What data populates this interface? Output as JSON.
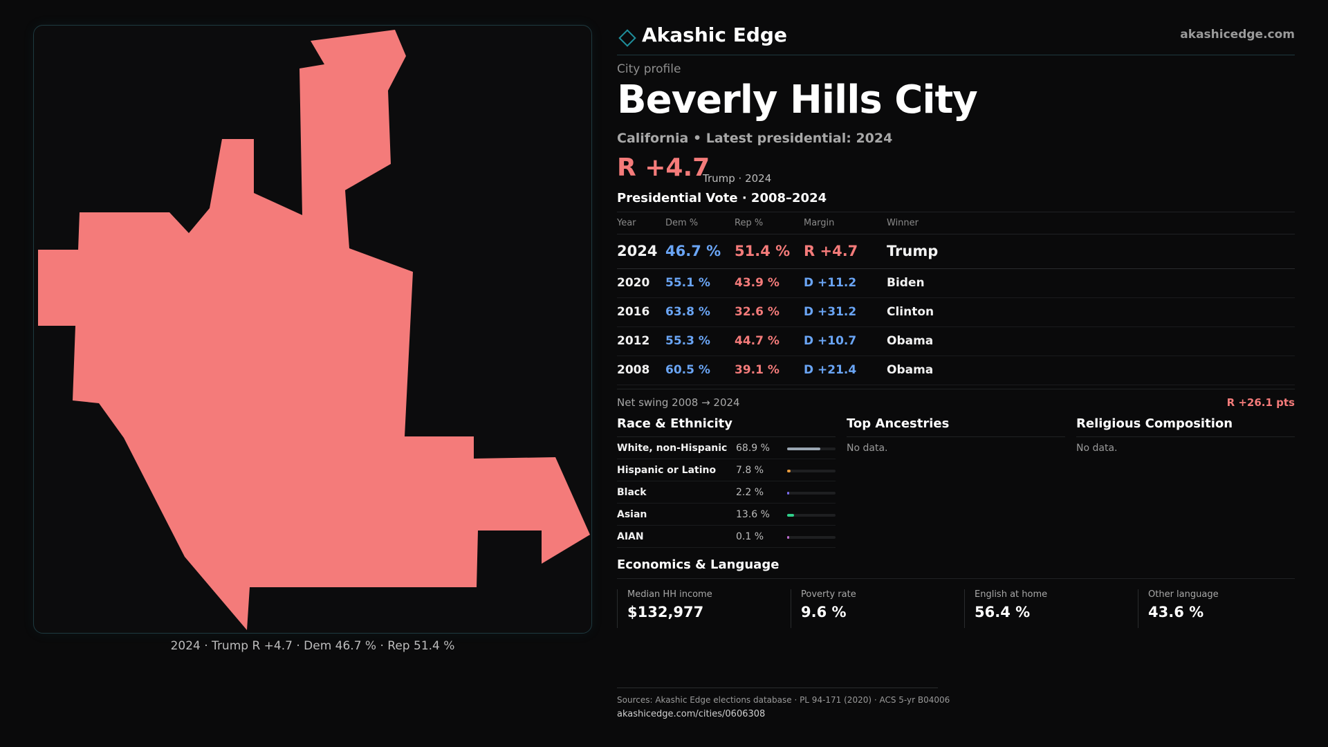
{
  "colors": {
    "republican": "#f47b7a",
    "democrat": "#6aa5f5",
    "accent": "#1f8f9c",
    "background": "#0a0a0b",
    "map_fill": "#f47b7a"
  },
  "header": {
    "brand_icon": "diamond-icon",
    "brand_name": "Akashic Edge",
    "site_url": "akashicedge.com"
  },
  "profile": {
    "kicker": "City profile",
    "title": "Beverly Hills City",
    "subtitle": "California • Latest presidential: 2024",
    "margin": "R +4.7",
    "margin_note": "Trump · 2024"
  },
  "map": {
    "caption": "2024 · Trump R +4.7 · Dem 46.7 % · Rep 51.4 %"
  },
  "votes": {
    "section_title": "Presidential Vote · 2008–2024",
    "columns": [
      "Year",
      "Dem %",
      "Rep %",
      "Margin",
      "Winner"
    ],
    "rows": [
      {
        "year": "2024",
        "dem": "46.7 %",
        "rep": "51.4 %",
        "margin": "R +4.7",
        "party": "R",
        "winner": "Trump"
      },
      {
        "year": "2020",
        "dem": "55.1 %",
        "rep": "43.9 %",
        "margin": "D +11.2",
        "party": "D",
        "winner": "Biden"
      },
      {
        "year": "2016",
        "dem": "63.8 %",
        "rep": "32.6 %",
        "margin": "D +31.2",
        "party": "D",
        "winner": "Clinton"
      },
      {
        "year": "2012",
        "dem": "55.3 %",
        "rep": "44.7 %",
        "margin": "D +10.7",
        "party": "D",
        "winner": "Obama"
      },
      {
        "year": "2008",
        "dem": "60.5 %",
        "rep": "39.1 %",
        "margin": "D +21.4",
        "party": "D",
        "winner": "Obama"
      }
    ],
    "swing_label": "Net swing 2008 → 2024",
    "swing_value": "R +26.1 pts"
  },
  "race": {
    "title": "Race & Ethnicity",
    "rows": [
      {
        "name": "White, non-Hispanic",
        "pct": "68.9 %",
        "value": 68.9,
        "color": "#9aa6b2"
      },
      {
        "name": "Hispanic or Latino",
        "pct": "7.8 %",
        "value": 7.8,
        "color": "#e89a3c"
      },
      {
        "name": "Black",
        "pct": "2.2 %",
        "value": 2.2,
        "color": "#7a6cf0"
      },
      {
        "name": "Asian",
        "pct": "13.6 %",
        "value": 13.6,
        "color": "#2fcf8a"
      },
      {
        "name": "AIAN",
        "pct": "0.1 %",
        "value": 0.1,
        "color": "#c06cd0"
      }
    ]
  },
  "ancestries": {
    "title": "Top Ancestries",
    "empty": "No data."
  },
  "religion": {
    "title": "Religious Composition",
    "empty": "No data."
  },
  "economics": {
    "title": "Economics & Language",
    "stats": [
      {
        "label": "Median HH income",
        "value": "$132,977"
      },
      {
        "label": "Poverty rate",
        "value": "9.6 %"
      },
      {
        "label": "English at home",
        "value": "56.4 %"
      },
      {
        "label": "Other language",
        "value": "43.6 %"
      }
    ]
  },
  "footer": {
    "sources": "Sources: Akashic Edge elections database · PL 94-171 (2020) · ACS 5-yr B04006",
    "url": "akashicedge.com/cities/0606308"
  }
}
